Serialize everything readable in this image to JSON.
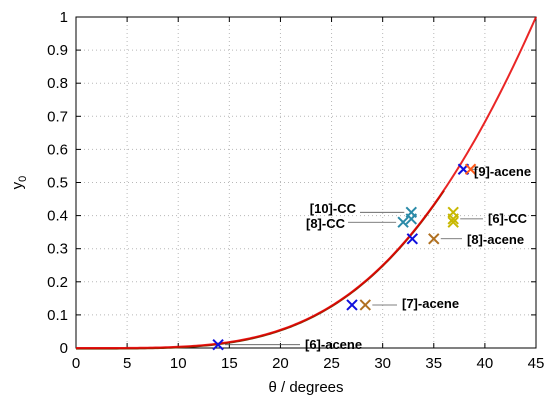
{
  "chart_data": {
    "type": "scatter",
    "xlabel": "θ / degrees",
    "ylabel_main": "y",
    "ylabel_sub": "0",
    "xlim": [
      0,
      45
    ],
    "ylim": [
      0,
      1
    ],
    "xticks": [
      "0",
      "5",
      "10",
      "15",
      "20",
      "25",
      "30",
      "35",
      "40",
      "45"
    ],
    "yticks": [
      "0",
      "0.1",
      "0.2",
      "0.3",
      "0.4",
      "0.5",
      "0.6",
      "0.7",
      "0.8",
      "0.9",
      "1"
    ],
    "grid": true,
    "curve_color": "#e60000",
    "curve_shadow_color": "#7a3a0a",
    "series": [
      {
        "color": "#1010dd",
        "points": [
          {
            "x": 13.9,
            "y": 0.01
          },
          {
            "x": 27.0,
            "y": 0.13
          },
          {
            "x": 32.9,
            "y": 0.33
          },
          {
            "x": 37.9,
            "y": 0.54
          }
        ]
      },
      {
        "color": "#b07020",
        "points": [
          {
            "x": 28.3,
            "y": 0.13
          },
          {
            "x": 35.0,
            "y": 0.33
          }
        ]
      },
      {
        "color": "#ff5a1a",
        "points": [
          {
            "x": 38.6,
            "y": 0.54
          }
        ]
      },
      {
        "color": "#2a8aa8",
        "points": [
          {
            "x": 32.0,
            "y": 0.38
          },
          {
            "x": 32.8,
            "y": 0.39
          },
          {
            "x": 32.8,
            "y": 0.41
          }
        ]
      },
      {
        "color": "#c8b800",
        "points": [
          {
            "x": 36.9,
            "y": 0.38
          },
          {
            "x": 36.9,
            "y": 0.39
          },
          {
            "x": 36.9,
            "y": 0.41
          }
        ]
      }
    ],
    "annotations": [
      {
        "text": "[6]-acene",
        "x": 13.9,
        "y": 0.01,
        "side": "right"
      },
      {
        "text": "[7]-acene",
        "x": 28.3,
        "y": 0.13,
        "side": "right"
      },
      {
        "text": "[8]-acene",
        "x": 35.0,
        "y": 0.33,
        "side": "right"
      },
      {
        "text": "[9]-acene",
        "x": 38.6,
        "y": 0.54,
        "side": "right"
      },
      {
        "text": "[6]-CC",
        "x": 36.9,
        "y": 0.39,
        "side": "right"
      },
      {
        "text": "[10]-CC",
        "x": 32.8,
        "y": 0.41,
        "side": "left"
      },
      {
        "text": "[8]-CC",
        "x": 32.0,
        "y": 0.38,
        "side": "left"
      }
    ]
  }
}
